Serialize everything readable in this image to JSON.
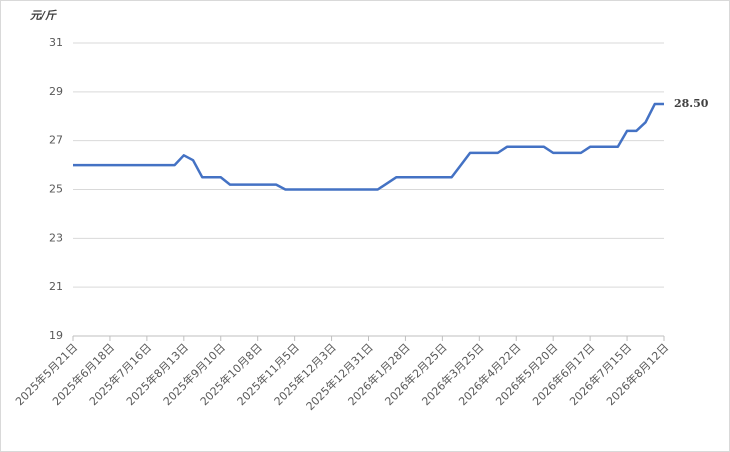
{
  "chart_data": {
    "type": "line",
    "y_label": "元/斤",
    "categories": [
      "2025年5月21日",
      null,
      null,
      null,
      "2025年6月18日",
      null,
      null,
      null,
      "2025年7月16日",
      null,
      null,
      null,
      "2025年8月13日",
      null,
      null,
      null,
      "2025年9月10日",
      null,
      null,
      null,
      "2025年10月8日",
      null,
      null,
      null,
      "2025年11月5日",
      null,
      null,
      null,
      "2025年12月3日",
      null,
      null,
      null,
      "2025年12月31日",
      null,
      null,
      null,
      "2026年1月28日",
      null,
      null,
      null,
      "2026年2月25日",
      null,
      null,
      null,
      "2026年3月25日",
      null,
      null,
      null,
      "2026年4月22日",
      null,
      null,
      null,
      "2026年5月20日",
      null,
      null,
      null,
      "2026年6月17日",
      null,
      null,
      null,
      "2026年7月15日",
      null,
      null,
      null,
      "2026年8月12日"
    ],
    "values": [
      26,
      26,
      26,
      26,
      26,
      26,
      26,
      26,
      26,
      26,
      26,
      26,
      26.4,
      26.2,
      25.5,
      25.5,
      25.5,
      25.2,
      25.2,
      25.2,
      25.2,
      25.2,
      25.2,
      25,
      25,
      25,
      25,
      25,
      25,
      25,
      25,
      25,
      25,
      25,
      25.25,
      25.5,
      25.5,
      25.5,
      25.5,
      25.5,
      25.5,
      25.5,
      26,
      26.5,
      26.5,
      26.5,
      26.5,
      26.75,
      26.75,
      26.75,
      26.75,
      26.75,
      26.5,
      26.5,
      26.5,
      26.5,
      26.75,
      26.75,
      26.75,
      26.75,
      27.4,
      27.4,
      27.75,
      28.5,
      28.5
    ],
    "value_labels": [
      null,
      null,
      null,
      null,
      null,
      null,
      null,
      null,
      null,
      null,
      null,
      null,
      null,
      null,
      null,
      null,
      null,
      null,
      null,
      null,
      null,
      null,
      null,
      null,
      null,
      null,
      null,
      null,
      null,
      null,
      null,
      null,
      null,
      null,
      null,
      null,
      null,
      null,
      null,
      null,
      null,
      null,
      null,
      null,
      null,
      null,
      null,
      null,
      null,
      null,
      null,
      null,
      null,
      null,
      null,
      null,
      null,
      null,
      null,
      null,
      null,
      null,
      null,
      null,
      "28.50"
    ],
    "color": "#4472c4",
    "ylim": [
      19,
      31
    ],
    "yticks": [
      19,
      21,
      23,
      25,
      27,
      29,
      31
    ],
    "grid": true
  }
}
